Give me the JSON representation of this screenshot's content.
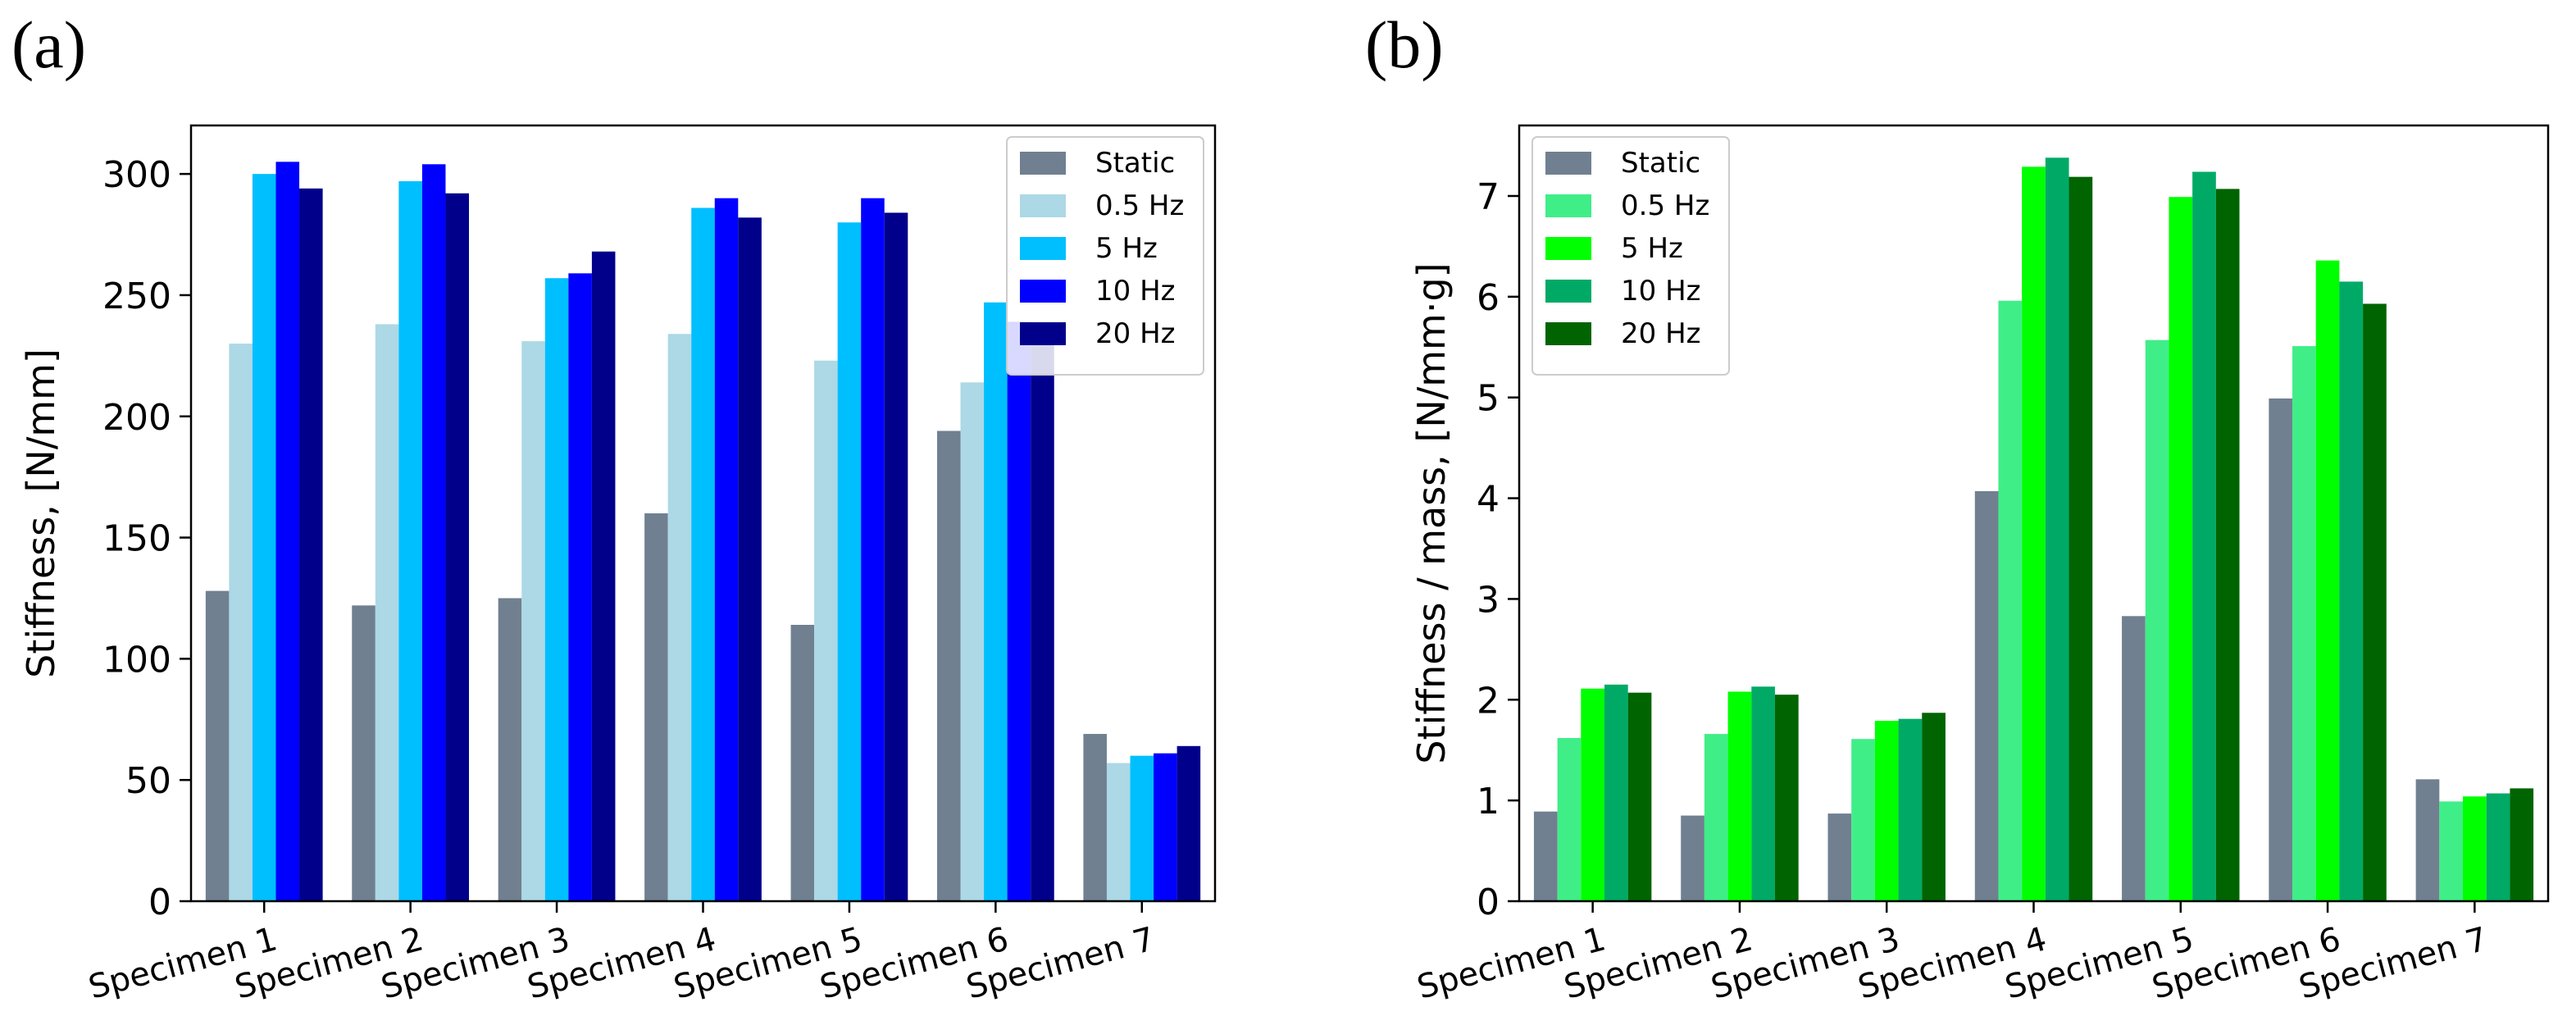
{
  "panels": [
    {
      "label": "(a)"
    },
    {
      "label": "(b)"
    }
  ],
  "chart_data": [
    {
      "type": "bar",
      "title": "",
      "xlabel": "",
      "ylabel": "Stiffness, [N/mm]",
      "ylim": [
        0,
        320
      ],
      "yticks": [
        0,
        50,
        100,
        150,
        200,
        250,
        300
      ],
      "grid": false,
      "legend_position": "top-right",
      "categories": [
        "Specimen 1",
        "Specimen 2",
        "Specimen 3",
        "Specimen 4",
        "Specimen 5",
        "Specimen 6",
        "Specimen 7"
      ],
      "series": [
        {
          "name": "Static",
          "color": "#708090",
          "values": [
            128,
            122,
            125,
            160,
            114,
            194,
            69
          ]
        },
        {
          "name": "0.5 Hz",
          "color": "#add8e6",
          "values": [
            230,
            238,
            231,
            234,
            223,
            214,
            57
          ]
        },
        {
          "name": "5 Hz",
          "color": "#00bfff",
          "values": [
            300,
            297,
            257,
            286,
            280,
            247,
            60
          ]
        },
        {
          "name": "10 Hz",
          "color": "#0000ff",
          "values": [
            305,
            304,
            259,
            290,
            290,
            239,
            61
          ]
        },
        {
          "name": "20 Hz",
          "color": "#00008b",
          "values": [
            294,
            292,
            268,
            282,
            284,
            237,
            64
          ]
        }
      ]
    },
    {
      "type": "bar",
      "title": "",
      "xlabel": "",
      "ylabel": "Stiffness / mass, [N/mm·g]",
      "ylim": [
        0,
        7.7
      ],
      "yticks": [
        0,
        1,
        2,
        3,
        4,
        5,
        6,
        7
      ],
      "grid": false,
      "legend_position": "top-left",
      "categories": [
        "Specimen 1",
        "Specimen 2",
        "Specimen 3",
        "Specimen 4",
        "Specimen 5",
        "Specimen 6",
        "Specimen 7"
      ],
      "series": [
        {
          "name": "Static",
          "color": "#708090",
          "values": [
            0.89,
            0.85,
            0.87,
            4.07,
            2.83,
            4.99,
            1.21
          ]
        },
        {
          "name": "0.5 Hz",
          "color": "#40ee88",
          "values": [
            1.62,
            1.66,
            1.61,
            5.96,
            5.57,
            5.51,
            0.99
          ]
        },
        {
          "name": "5 Hz",
          "color": "#00ff00",
          "values": [
            2.11,
            2.08,
            1.79,
            7.29,
            6.99,
            6.36,
            1.04
          ]
        },
        {
          "name": "10 Hz",
          "color": "#00aa66",
          "values": [
            2.15,
            2.13,
            1.81,
            7.38,
            7.24,
            6.15,
            1.07
          ]
        },
        {
          "name": "20 Hz",
          "color": "#006400",
          "values": [
            2.07,
            2.05,
            1.87,
            7.19,
            7.07,
            5.93,
            1.12
          ]
        }
      ]
    }
  ]
}
